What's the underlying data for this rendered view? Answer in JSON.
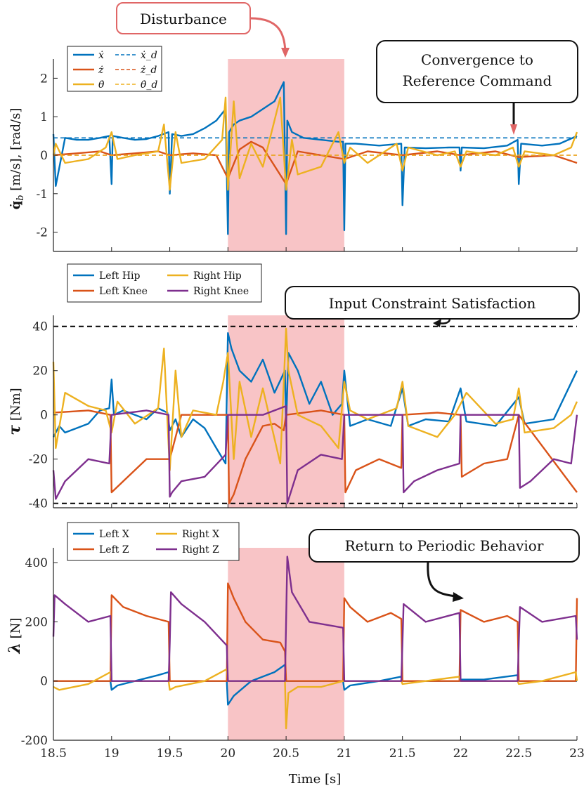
{
  "colors": {
    "blue": "#0072BD",
    "orange": "#D95319",
    "yellow": "#EDB120",
    "purple": "#7E2F8E",
    "shade": "#F8C4C6",
    "disturbance_border": "#E06666",
    "disturbance_arrow": "#E06666"
  },
  "xaxis": {
    "label": "Time [s]",
    "ticks": [
      18.5,
      19,
      19.5,
      20,
      20.5,
      21,
      21.5,
      22,
      22.5,
      23
    ],
    "tick_labels": [
      "18.5",
      "19",
      "19.5",
      "20",
      "20.5",
      "21",
      "21.5",
      "22",
      "22.5",
      "23"
    ],
    "range": [
      18.5,
      23
    ]
  },
  "shaded_interval": [
    20,
    21
  ],
  "annotations": {
    "disturbance": "Disturbance",
    "convergence_line1": "Convergence to",
    "convergence_line2": "Reference Command",
    "constraint": "Input Constraint Satisfaction",
    "periodic": "Return to Periodic Behavior"
  },
  "chart_data": [
    {
      "type": "line",
      "ylabel": "q̇_b [m/s], [rad/s]",
      "ylabel_symbol": "q̇",
      "ylabel_sub": "b",
      "ylabel_units": " [m/s], [rad/s]",
      "ylim": [
        -2.5,
        2.5
      ],
      "yticks": [
        -2,
        -1,
        0,
        1,
        2
      ],
      "ytick_labels": [
        "-2",
        "-1",
        "0",
        "1",
        "2"
      ],
      "legend": [
        "ẋ",
        "ẋ_d",
        "ż",
        "ż_d",
        "θ̇",
        "θ̇_d"
      ],
      "series": [
        {
          "name": "ẋ",
          "color": "blue",
          "dashed": false,
          "x": [
            18.5,
            18.52,
            18.6,
            18.7,
            18.8,
            18.9,
            18.98,
            19.0,
            19.01,
            19.1,
            19.2,
            19.3,
            19.4,
            19.49,
            19.5,
            19.52,
            19.6,
            19.7,
            19.8,
            19.9,
            19.98,
            20.0,
            20.01,
            20.05,
            20.1,
            20.2,
            20.3,
            20.4,
            20.48,
            20.5,
            20.51,
            20.55,
            20.65,
            20.8,
            20.95,
            20.99,
            21.0,
            21.01,
            21.1,
            21.3,
            21.49,
            21.5,
            21.52,
            21.7,
            21.9,
            21.99,
            22.0,
            22.01,
            22.2,
            22.4,
            22.49,
            22.5,
            22.52,
            22.7,
            22.85,
            23.0
          ],
          "values": [
            0.55,
            -0.8,
            0.45,
            0.4,
            0.4,
            0.45,
            0.5,
            -0.75,
            0.5,
            0.45,
            0.4,
            0.42,
            0.5,
            0.6,
            -1.0,
            0.55,
            0.5,
            0.55,
            0.7,
            0.9,
            1.2,
            -2.05,
            0.6,
            0.8,
            0.9,
            1.0,
            1.2,
            1.4,
            1.9,
            -2.05,
            0.9,
            0.6,
            0.45,
            0.4,
            0.35,
            0.35,
            -1.95,
            0.3,
            0.3,
            0.25,
            0.3,
            -1.3,
            0.2,
            0.18,
            0.2,
            0.2,
            -0.4,
            0.2,
            0.18,
            0.25,
            0.4,
            -0.75,
            0.3,
            0.25,
            0.3,
            0.5
          ]
        },
        {
          "name": "ẋ_d",
          "color": "blue",
          "dashed": true,
          "x": [
            18.5,
            23.0
          ],
          "values": [
            0.45,
            0.45
          ]
        },
        {
          "name": "ż",
          "color": "orange",
          "dashed": false,
          "x": [
            18.5,
            18.7,
            18.9,
            19.0,
            19.2,
            19.4,
            19.5,
            19.7,
            19.9,
            20.0,
            20.1,
            20.2,
            20.3,
            20.5,
            20.6,
            20.8,
            21.0,
            21.2,
            21.5,
            21.8,
            22.0,
            22.3,
            22.5,
            22.8,
            23.0
          ],
          "values": [
            0.0,
            0.05,
            0.1,
            0.0,
            0.05,
            0.1,
            0.0,
            0.05,
            0.0,
            -0.6,
            0.15,
            0.35,
            0.2,
            -0.75,
            0.1,
            0.0,
            -0.1,
            0.1,
            0.0,
            0.1,
            0.0,
            0.1,
            -0.05,
            0.0,
            -0.2
          ]
        },
        {
          "name": "ż_d",
          "color": "orange",
          "dashed": true,
          "x": [
            18.5,
            23.0
          ],
          "values": [
            0.0,
            0.0
          ]
        },
        {
          "name": "θ̇",
          "color": "yellow",
          "dashed": false,
          "x": [
            18.5,
            18.52,
            18.6,
            18.8,
            18.95,
            19.0,
            19.05,
            19.2,
            19.4,
            19.45,
            19.5,
            19.55,
            19.6,
            19.8,
            19.95,
            19.98,
            20.0,
            20.05,
            20.1,
            20.2,
            20.3,
            20.45,
            20.5,
            20.55,
            20.6,
            20.8,
            20.95,
            21.0,
            21.05,
            21.2,
            21.45,
            21.5,
            21.55,
            21.8,
            21.95,
            22.0,
            22.05,
            22.3,
            22.45,
            22.5,
            22.55,
            22.8,
            22.95,
            23.0
          ],
          "values": [
            0.0,
            0.3,
            -0.2,
            -0.1,
            0.2,
            0.6,
            -0.1,
            0.0,
            0.1,
            0.8,
            -0.9,
            0.6,
            -0.2,
            -0.1,
            0.4,
            1.5,
            -0.9,
            1.4,
            -0.6,
            0.3,
            -0.3,
            1.5,
            -0.9,
            0.4,
            -0.5,
            -0.3,
            0.6,
            -0.2,
            0.2,
            -0.2,
            0.3,
            -0.4,
            0.2,
            0.0,
            0.1,
            -0.3,
            0.1,
            0.0,
            0.2,
            -0.3,
            0.1,
            0.0,
            0.2,
            0.6
          ]
        },
        {
          "name": "θ̇_d",
          "color": "yellow",
          "dashed": true,
          "x": [
            18.5,
            23.0
          ],
          "values": [
            0.0,
            0.0
          ]
        }
      ]
    },
    {
      "type": "line",
      "ylabel": "τ [Nm]",
      "ylabel_symbol": "τ",
      "ylabel_units": " [Nm]",
      "ylim": [
        -42,
        45
      ],
      "yticks": [
        -40,
        -20,
        0,
        20,
        40
      ],
      "ytick_labels": [
        "-40",
        "-20",
        "0",
        "20",
        "40"
      ],
      "limit_lines": [
        40,
        -40
      ],
      "legend": [
        "Left Hip",
        "Left Knee",
        "Right Hip",
        "Right Knee"
      ],
      "series": [
        {
          "name": "Left Hip",
          "color": "blue",
          "dashed": false,
          "x": [
            18.5,
            18.55,
            18.6,
            18.7,
            18.8,
            18.9,
            18.98,
            19.0,
            19.02,
            19.1,
            19.2,
            19.3,
            19.4,
            19.48,
            19.5,
            19.55,
            19.6,
            19.7,
            19.8,
            19.9,
            19.98,
            20.0,
            20.03,
            20.1,
            20.2,
            20.3,
            20.4,
            20.49,
            20.5,
            20.52,
            20.6,
            20.7,
            20.8,
            20.9,
            20.98,
            21.0,
            21.05,
            21.2,
            21.4,
            21.5,
            21.55,
            21.7,
            21.9,
            22.0,
            22.05,
            22.3,
            22.5,
            22.55,
            22.8,
            23.0
          ],
          "values": [
            -10,
            -5,
            -8,
            -6,
            -4,
            2,
            3,
            16,
            0,
            2,
            0,
            -2,
            3,
            1,
            -7,
            -2,
            -10,
            -2,
            -6,
            -15,
            -22,
            37,
            30,
            20,
            15,
            25,
            10,
            20,
            -5,
            28,
            20,
            5,
            15,
            0,
            5,
            20,
            -5,
            -2,
            -5,
            12,
            -5,
            -2,
            -3,
            12,
            -3,
            -5,
            8,
            -4,
            -2,
            20
          ]
        },
        {
          "name": "Left Knee",
          "color": "orange",
          "dashed": false,
          "x": [
            18.5,
            18.8,
            18.99,
            19.0,
            19.1,
            19.3,
            19.5,
            19.6,
            20.0,
            20.01,
            20.05,
            20.15,
            20.3,
            20.4,
            20.48,
            20.5,
            20.8,
            21.0,
            21.01,
            21.1,
            21.3,
            21.49,
            21.5,
            21.8,
            22.0,
            22.01,
            22.2,
            22.4,
            22.5,
            23.0
          ],
          "values": [
            1,
            2,
            0,
            -35,
            -30,
            -20,
            -20,
            0,
            0,
            -40,
            -36,
            -20,
            -5,
            -4,
            -7,
            0,
            2,
            0,
            -35,
            -25,
            -20,
            -24,
            0,
            1,
            0,
            -28,
            -22,
            -20,
            0,
            -35
          ]
        },
        {
          "name": "Right Hip",
          "color": "yellow",
          "dashed": false,
          "x": [
            18.5,
            18.52,
            18.6,
            18.8,
            18.95,
            19.0,
            19.05,
            19.2,
            19.4,
            19.45,
            19.5,
            19.55,
            19.6,
            19.7,
            19.9,
            19.96,
            20.0,
            20.05,
            20.1,
            20.2,
            20.3,
            20.45,
            20.5,
            20.52,
            20.6,
            20.8,
            20.95,
            21.0,
            21.05,
            21.2,
            21.45,
            21.5,
            21.55,
            21.8,
            21.95,
            22.0,
            22.05,
            22.3,
            22.45,
            22.5,
            22.55,
            22.8,
            22.95,
            23.0
          ],
          "values": [
            24,
            -15,
            10,
            4,
            2,
            -8,
            6,
            -4,
            3,
            30,
            -25,
            20,
            -10,
            2,
            0,
            15,
            28,
            -20,
            15,
            -10,
            12,
            -22,
            39,
            20,
            0,
            -5,
            -15,
            15,
            2,
            -2,
            3,
            15,
            -5,
            -10,
            0,
            5,
            10,
            -4,
            -2,
            12,
            -8,
            -6,
            0,
            6
          ]
        },
        {
          "name": "Right Knee",
          "color": "purple",
          "dashed": false,
          "x": [
            18.5,
            18.52,
            18.6,
            18.8,
            18.98,
            19.0,
            19.3,
            19.49,
            19.5,
            19.52,
            19.6,
            19.8,
            19.98,
            20.0,
            20.3,
            20.5,
            20.51,
            20.6,
            20.8,
            20.98,
            21.0,
            21.3,
            21.5,
            21.51,
            21.6,
            21.8,
            21.99,
            22.0,
            22.3,
            22.5,
            22.51,
            22.6,
            22.8,
            22.95,
            23.0
          ],
          "values": [
            -25,
            -38,
            -30,
            -20,
            -22,
            0,
            2,
            0,
            -37,
            -35,
            -30,
            -28,
            -18,
            0,
            0,
            4,
            -40,
            -25,
            -18,
            -20,
            0,
            0,
            0,
            -35,
            -30,
            -25,
            -22,
            0,
            0,
            0,
            -33,
            -30,
            -20,
            -22,
            0
          ]
        }
      ]
    },
    {
      "type": "line",
      "ylabel": "λ [N]",
      "ylabel_symbol": "λ",
      "ylabel_units": " [N]",
      "ylim": [
        -200,
        450
      ],
      "yticks": [
        -200,
        0,
        200,
        400
      ],
      "ytick_labels": [
        "-200",
        "0",
        "200",
        "400"
      ],
      "legend": [
        "Left X",
        "Left Z",
        "Right X",
        "Right Z"
      ],
      "series": [
        {
          "name": "Left X",
          "color": "blue",
          "dashed": false,
          "x": [
            18.5,
            18.99,
            19.0,
            19.05,
            19.2,
            19.4,
            19.49,
            19.5,
            19.99,
            20.0,
            20.05,
            20.2,
            20.4,
            20.49,
            20.5,
            20.99,
            21.0,
            21.05,
            21.3,
            21.49,
            21.5,
            21.99,
            22.0,
            22.2,
            22.49,
            22.5,
            23.0
          ],
          "values": [
            0,
            0,
            -30,
            -15,
            0,
            20,
            30,
            0,
            0,
            -80,
            -50,
            0,
            30,
            55,
            0,
            0,
            -30,
            -15,
            0,
            15,
            0,
            0,
            5,
            5,
            20,
            0,
            0
          ]
        },
        {
          "name": "Left Z",
          "color": "orange",
          "dashed": false,
          "x": [
            18.5,
            18.99,
            19.0,
            19.1,
            19.3,
            19.49,
            19.5,
            19.99,
            20.0,
            20.05,
            20.15,
            20.3,
            20.45,
            20.49,
            20.5,
            20.99,
            21.0,
            21.05,
            21.2,
            21.4,
            21.49,
            21.5,
            21.99,
            22.0,
            22.2,
            22.4,
            22.49,
            22.5,
            22.99,
            23.0
          ],
          "values": [
            0,
            0,
            290,
            250,
            220,
            200,
            0,
            0,
            330,
            280,
            200,
            140,
            130,
            100,
            0,
            0,
            280,
            250,
            200,
            230,
            210,
            0,
            0,
            240,
            200,
            220,
            200,
            0,
            0,
            280
          ]
        },
        {
          "name": "Right X",
          "color": "yellow",
          "dashed": false,
          "x": [
            18.5,
            18.55,
            18.8,
            18.99,
            19.0,
            19.49,
            19.5,
            19.55,
            19.8,
            19.99,
            20.0,
            20.49,
            20.5,
            20.52,
            20.6,
            20.8,
            20.99,
            21.0,
            21.49,
            21.5,
            21.7,
            21.99,
            22.0,
            22.49,
            22.5,
            22.7,
            22.99,
            23.0
          ],
          "values": [
            -20,
            -30,
            -10,
            30,
            0,
            0,
            -30,
            -20,
            0,
            40,
            0,
            0,
            -160,
            -40,
            -20,
            -20,
            0,
            0,
            0,
            -10,
            0,
            15,
            0,
            0,
            -10,
            0,
            30,
            0
          ]
        },
        {
          "name": "Right Z",
          "color": "purple",
          "dashed": false,
          "x": [
            18.5,
            18.51,
            18.6,
            18.8,
            18.99,
            19.0,
            19.49,
            19.5,
            19.51,
            19.6,
            19.8,
            19.99,
            20.0,
            20.49,
            20.5,
            20.51,
            20.55,
            20.7,
            20.99,
            21.0,
            21.49,
            21.5,
            21.51,
            21.7,
            21.99,
            22.0,
            22.49,
            22.5,
            22.51,
            22.7,
            22.99,
            23.0
          ],
          "values": [
            150,
            290,
            260,
            200,
            220,
            0,
            0,
            130,
            300,
            260,
            200,
            120,
            0,
            0,
            200,
            420,
            300,
            200,
            180,
            0,
            0,
            130,
            260,
            200,
            230,
            0,
            0,
            130,
            250,
            200,
            220,
            140
          ]
        }
      ]
    }
  ]
}
